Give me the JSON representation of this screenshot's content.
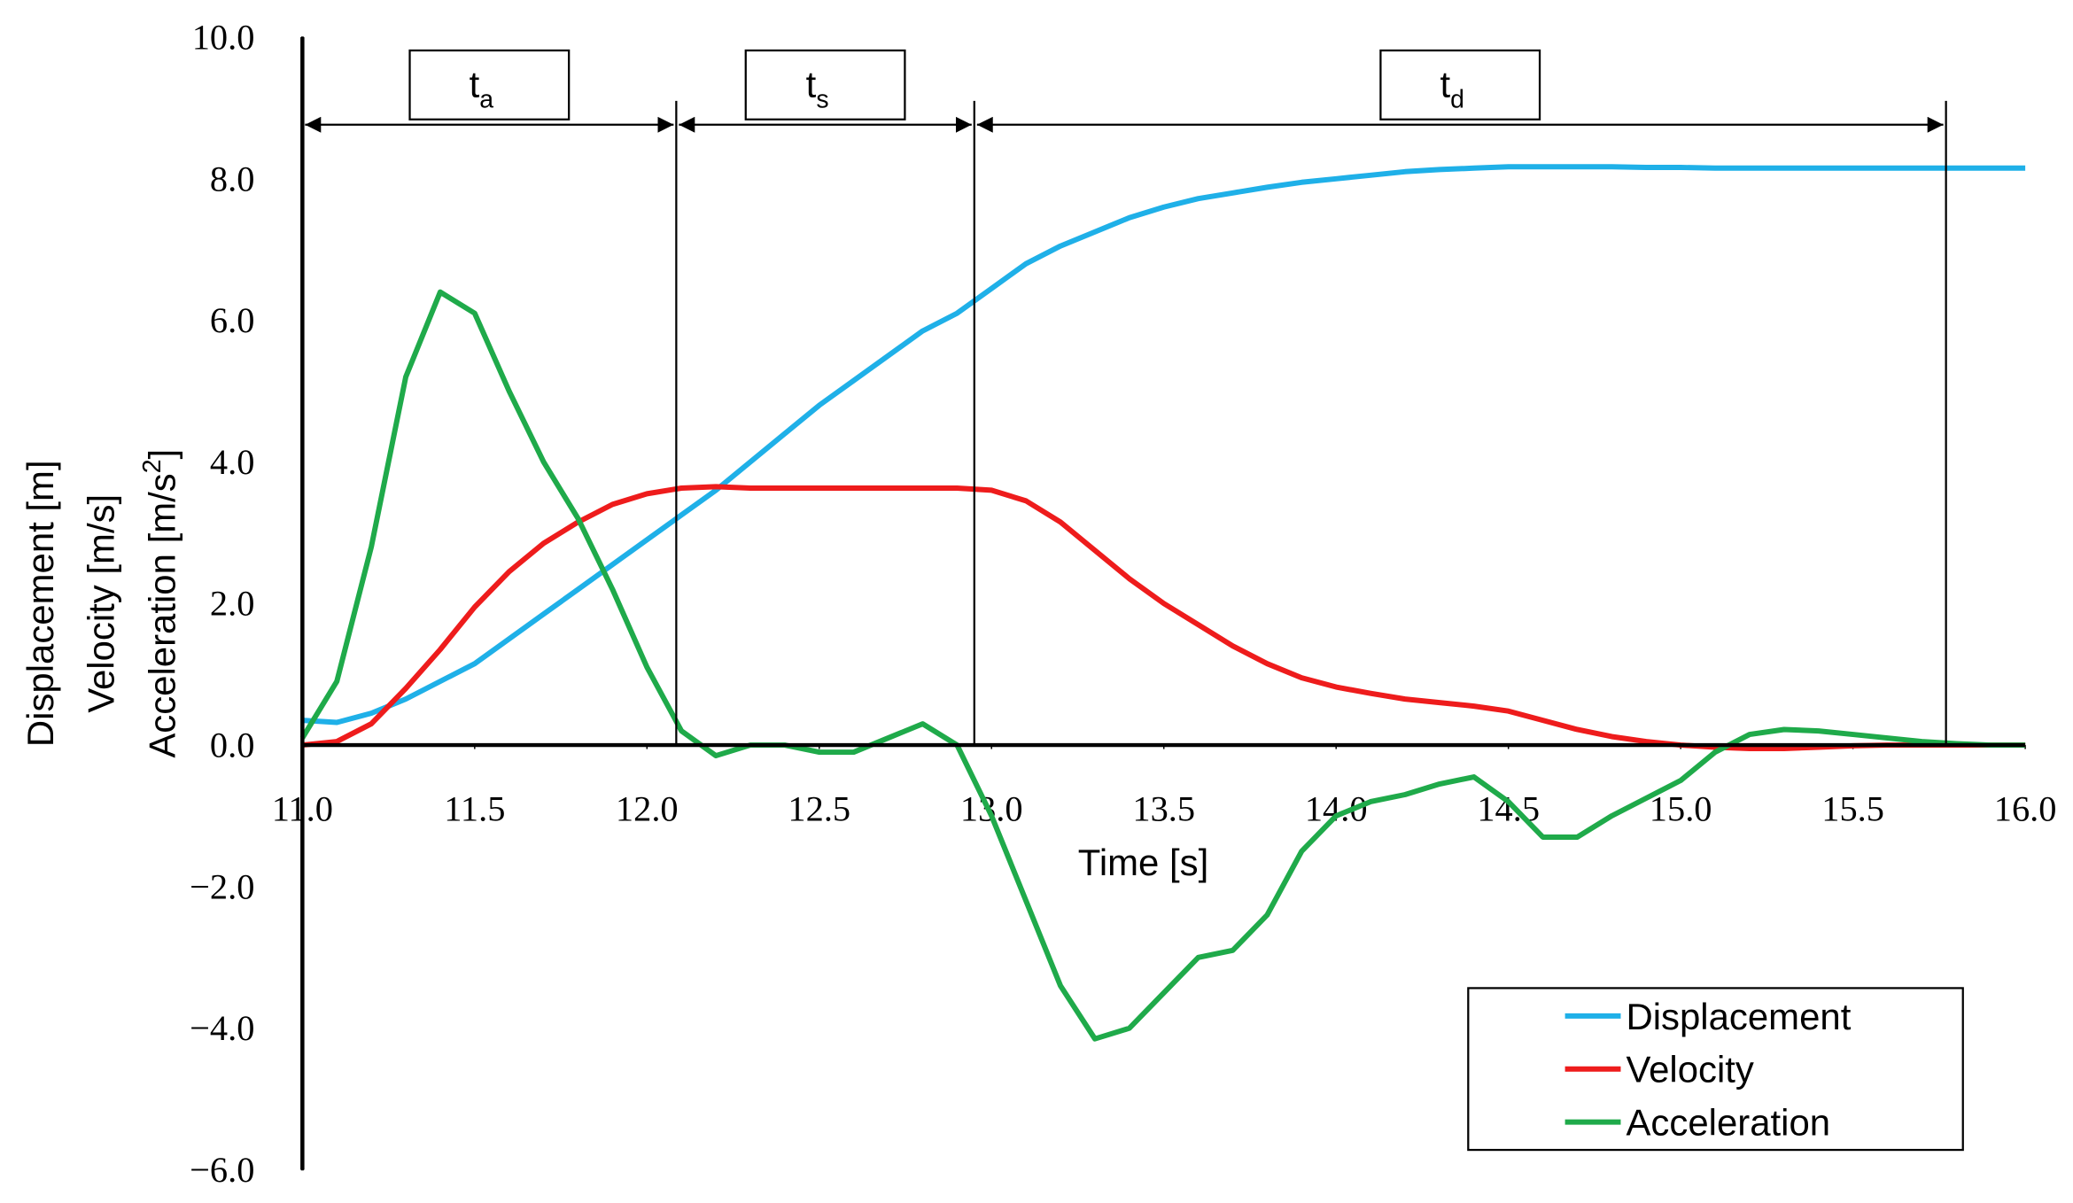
{
  "chart_data": {
    "type": "line",
    "xlabel": "Time [s]",
    "ylabel_lines": [
      {
        "text": "Displacement [m]"
      },
      {
        "text": "Velocity [m/s]"
      },
      {
        "text": "Acceleration [m/s",
        "sup": "2",
        "tail": "]"
      }
    ],
    "xlim": [
      11.0,
      16.0
    ],
    "ylim": [
      -6.0,
      10.0
    ],
    "xticks": [
      {
        "value": 11.0,
        "label": "11.0"
      },
      11.5,
      {
        "value": 12.0,
        "label": "12.0"
      },
      12.5,
      {
        "value": 13.0,
        "label": "13.0"
      },
      13.5,
      {
        "value": 14.0,
        "label": "14.0"
      },
      14.5,
      {
        "value": 15.0,
        "label": "15.0"
      },
      15.5,
      {
        "value": 16.0,
        "label": "16.0"
      }
    ],
    "yticks": [
      {
        "value": -6.0,
        "label": "−6.0"
      },
      {
        "value": -4.0,
        "label": "−4.0"
      },
      {
        "value": -2.0,
        "label": "−2.0"
      },
      {
        "value": 0.0,
        "label": "0.0"
      },
      {
        "value": 2.0,
        "label": "2.0"
      },
      {
        "value": 4.0,
        "label": "4.0"
      },
      {
        "value": 6.0,
        "label": "6.0"
      },
      {
        "value": 8.0,
        "label": "8.0"
      },
      {
        "value": 10.0,
        "label": "10.0"
      }
    ],
    "grid": false,
    "legend": "lower right",
    "phases": [
      {
        "label": "t",
        "subscript": "a",
        "start": 11.0,
        "end": 12.085
      },
      {
        "label": "t",
        "subscript": "s",
        "start": 12.085,
        "end": 12.95
      },
      {
        "label": "t",
        "subscript": "d",
        "start": 12.95,
        "end": 15.77
      }
    ],
    "x": [
      11.0,
      11.1,
      11.2,
      11.3,
      11.4,
      11.5,
      11.6,
      11.7,
      11.8,
      11.9,
      12.0,
      12.1,
      12.2,
      12.3,
      12.4,
      12.5,
      12.6,
      12.7,
      12.8,
      12.9,
      13.0,
      13.1,
      13.2,
      13.3,
      13.4,
      13.5,
      13.6,
      13.7,
      13.8,
      13.9,
      14.0,
      14.1,
      14.2,
      14.3,
      14.4,
      14.5,
      14.6,
      14.7,
      14.8,
      14.9,
      15.0,
      15.1,
      15.2,
      15.3,
      15.4,
      15.5,
      15.6,
      15.7,
      15.8,
      15.9,
      16.0
    ],
    "series": [
      {
        "name": "Displacement",
        "color": "#1fb0e8",
        "values": [
          0.35,
          0.32,
          0.45,
          0.65,
          0.9,
          1.15,
          1.5,
          1.85,
          2.2,
          2.55,
          2.9,
          3.25,
          3.6,
          4.0,
          4.4,
          4.8,
          5.15,
          5.5,
          5.85,
          6.1,
          6.45,
          6.8,
          7.05,
          7.25,
          7.45,
          7.6,
          7.72,
          7.8,
          7.88,
          7.95,
          8.0,
          8.05,
          8.1,
          8.13,
          8.15,
          8.17,
          8.17,
          8.17,
          8.17,
          8.16,
          8.16,
          8.15,
          8.15,
          8.15,
          8.15,
          8.15,
          8.15,
          8.15,
          8.15,
          8.15,
          8.15
        ]
      },
      {
        "name": "Velocity",
        "color": "#ee1c1c",
        "values": [
          0.0,
          0.05,
          0.3,
          0.8,
          1.35,
          1.95,
          2.45,
          2.85,
          3.15,
          3.4,
          3.55,
          3.63,
          3.65,
          3.63,
          3.63,
          3.63,
          3.63,
          3.63,
          3.63,
          3.63,
          3.6,
          3.45,
          3.15,
          2.75,
          2.35,
          2.0,
          1.7,
          1.4,
          1.15,
          0.95,
          0.82,
          0.73,
          0.65,
          0.6,
          0.55,
          0.48,
          0.35,
          0.22,
          0.12,
          0.05,
          0.0,
          -0.03,
          -0.05,
          -0.05,
          -0.03,
          -0.01,
          0.0,
          0.0,
          0.0,
          0.0,
          0.0
        ]
      },
      {
        "name": "Acceleration",
        "color": "#1faa4a",
        "values": [
          0.1,
          0.9,
          2.8,
          5.2,
          6.4,
          6.1,
          5.0,
          4.0,
          3.2,
          2.2,
          1.1,
          0.2,
          -0.15,
          0.0,
          0.0,
          -0.1,
          -0.1,
          0.1,
          0.3,
          0.0,
          -1.0,
          -2.2,
          -3.4,
          -4.15,
          -4.0,
          -3.5,
          -3.0,
          -2.9,
          -2.4,
          -1.5,
          -1.0,
          -0.8,
          -0.7,
          -0.55,
          -0.45,
          -0.8,
          -1.3,
          -1.3,
          -1.0,
          -0.75,
          -0.5,
          -0.1,
          0.15,
          0.22,
          0.2,
          0.15,
          0.1,
          0.05,
          0.02,
          0.0,
          0.0
        ]
      }
    ]
  }
}
